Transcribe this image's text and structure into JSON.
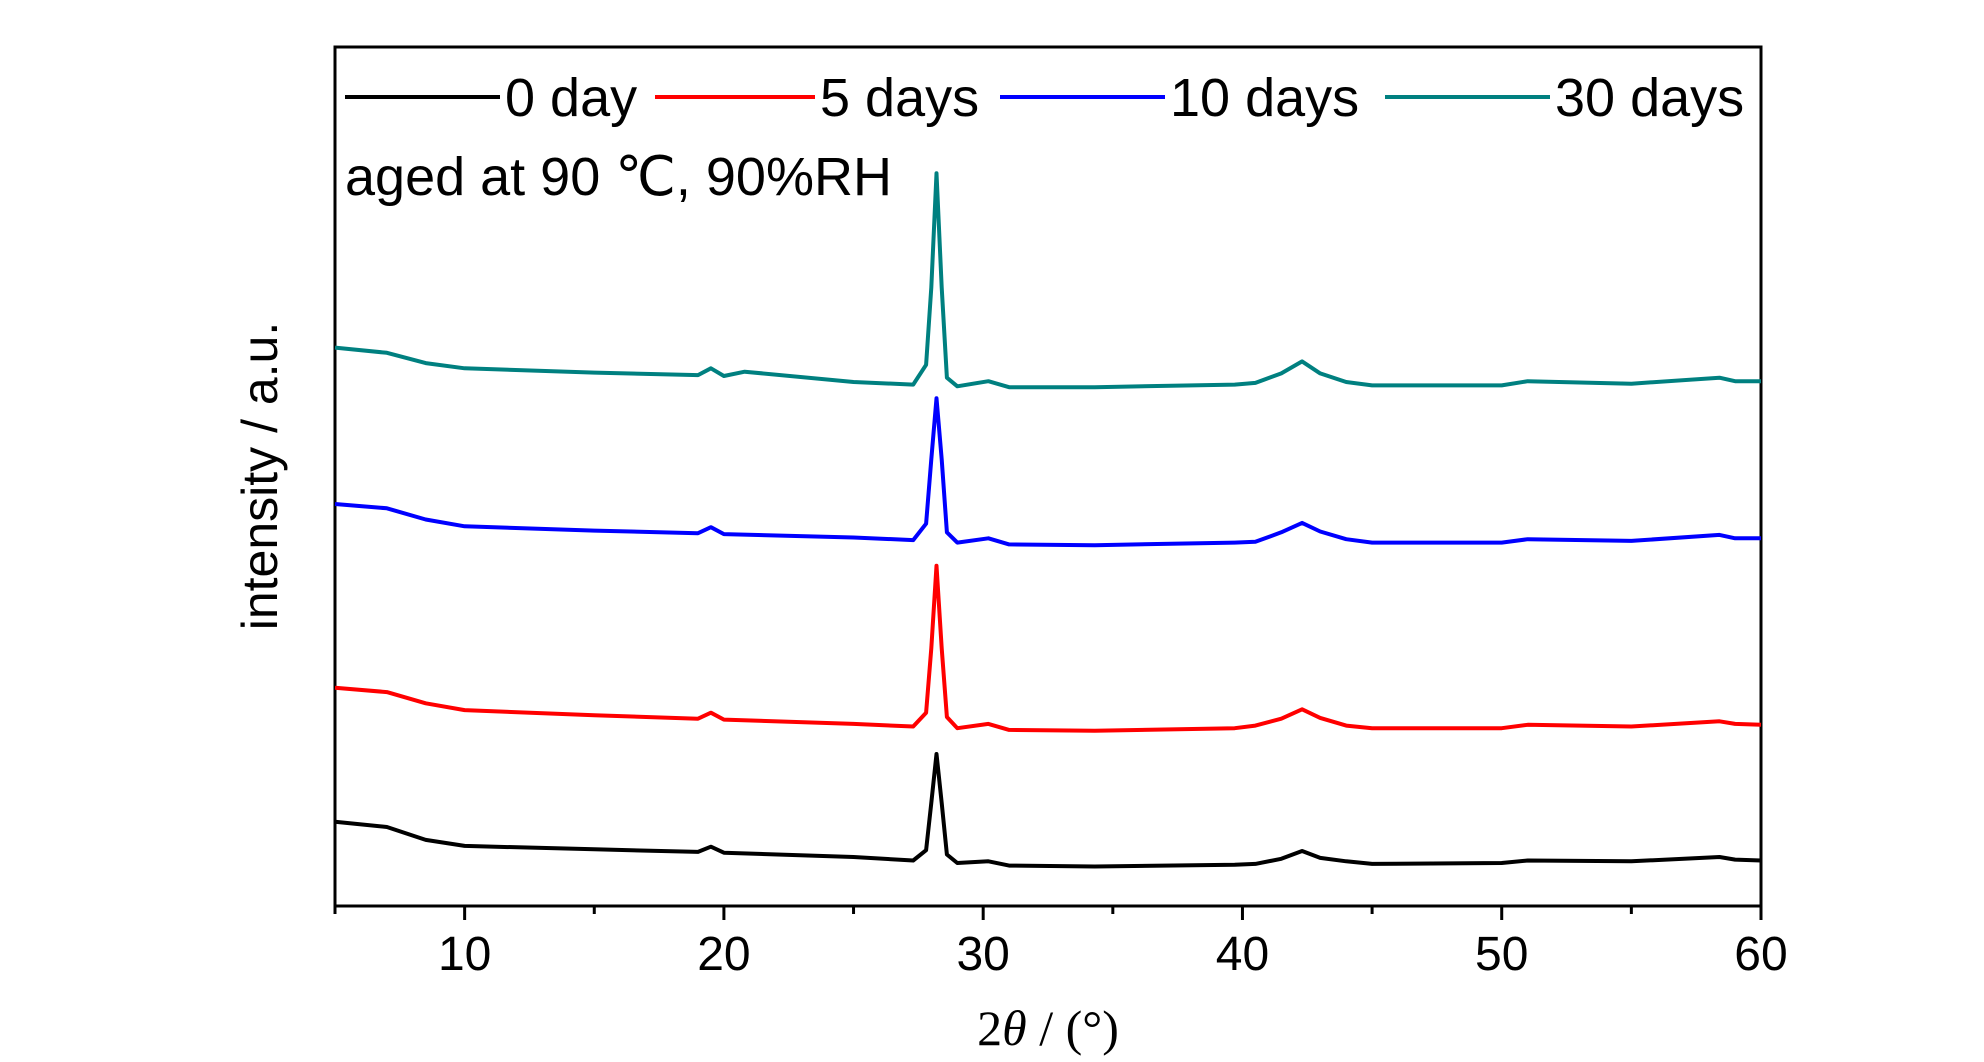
{
  "chart_data": {
    "type": "line",
    "xlabel_prefix": "2",
    "xlabel_theta": "θ",
    "xlabel_suffix": " / (°)",
    "ylabel": "intensity / a.u.",
    "annotation": "aged at 90 ℃, 90%RH",
    "xlim": [
      5,
      60
    ],
    "ylim": [
      0,
      100
    ],
    "x_ticks": [
      10,
      20,
      30,
      40,
      50,
      60
    ],
    "minor_x_ticks": [
      5,
      15,
      25,
      35,
      45,
      55
    ],
    "y_ticks_shown": false,
    "grid": false,
    "legend_position": "top",
    "series": [
      {
        "name": "0 day",
        "color": "#000000",
        "points": [
          [
            5,
            9.8
          ],
          [
            7,
            9.2
          ],
          [
            8.5,
            7.7
          ],
          [
            10,
            7.0
          ],
          [
            15,
            6.6
          ],
          [
            19,
            6.3
          ],
          [
            19.5,
            6.9
          ],
          [
            20,
            6.2
          ],
          [
            25,
            5.7
          ],
          [
            27.3,
            5.3
          ],
          [
            27.8,
            6.5
          ],
          [
            28.0,
            12.0
          ],
          [
            28.2,
            17.7
          ],
          [
            28.4,
            12.0
          ],
          [
            28.6,
            6.0
          ],
          [
            29,
            5.0
          ],
          [
            30.2,
            5.2
          ],
          [
            31,
            4.7
          ],
          [
            34.3,
            4.6
          ],
          [
            39.7,
            4.8
          ],
          [
            40.5,
            4.9
          ],
          [
            41.5,
            5.5
          ],
          [
            42.3,
            6.4
          ],
          [
            43,
            5.6
          ],
          [
            44,
            5.2
          ],
          [
            45,
            4.9
          ],
          [
            50,
            5.0
          ],
          [
            51,
            5.3
          ],
          [
            55,
            5.2
          ],
          [
            58.4,
            5.7
          ],
          [
            59,
            5.4
          ],
          [
            60,
            5.3
          ]
        ]
      },
      {
        "name": "5 days",
        "color": "#ff0000",
        "points": [
          [
            5,
            25.4
          ],
          [
            7,
            24.9
          ],
          [
            8.5,
            23.6
          ],
          [
            10,
            22.8
          ],
          [
            15,
            22.2
          ],
          [
            19,
            21.8
          ],
          [
            19.5,
            22.5
          ],
          [
            20,
            21.7
          ],
          [
            25,
            21.2
          ],
          [
            27.3,
            20.9
          ],
          [
            27.8,
            22.5
          ],
          [
            28.0,
            30.0
          ],
          [
            28.2,
            39.6
          ],
          [
            28.4,
            30.0
          ],
          [
            28.6,
            22.0
          ],
          [
            29,
            20.7
          ],
          [
            30.2,
            21.2
          ],
          [
            31,
            20.5
          ],
          [
            34.3,
            20.4
          ],
          [
            39.7,
            20.7
          ],
          [
            40.5,
            21.0
          ],
          [
            41.5,
            21.8
          ],
          [
            42.3,
            22.9
          ],
          [
            43,
            21.9
          ],
          [
            44,
            21.0
          ],
          [
            45,
            20.7
          ],
          [
            50,
            20.7
          ],
          [
            51,
            21.1
          ],
          [
            55,
            20.9
          ],
          [
            58.4,
            21.5
          ],
          [
            59,
            21.2
          ],
          [
            60,
            21.1
          ]
        ]
      },
      {
        "name": "10 days",
        "color": "#0000ff",
        "points": [
          [
            5,
            46.8
          ],
          [
            7,
            46.3
          ],
          [
            8.5,
            45.0
          ],
          [
            10,
            44.2
          ],
          [
            15,
            43.7
          ],
          [
            19,
            43.4
          ],
          [
            19.5,
            44.1
          ],
          [
            20,
            43.3
          ],
          [
            25,
            42.9
          ],
          [
            27.3,
            42.6
          ],
          [
            27.8,
            44.5
          ],
          [
            28.0,
            52.0
          ],
          [
            28.2,
            59.1
          ],
          [
            28.4,
            52.0
          ],
          [
            28.6,
            43.5
          ],
          [
            29,
            42.3
          ],
          [
            30.2,
            42.8
          ],
          [
            31,
            42.1
          ],
          [
            34.3,
            42.0
          ],
          [
            39.7,
            42.3
          ],
          [
            40.5,
            42.4
          ],
          [
            41.5,
            43.5
          ],
          [
            42.3,
            44.6
          ],
          [
            43,
            43.6
          ],
          [
            44,
            42.7
          ],
          [
            45,
            42.3
          ],
          [
            50,
            42.3
          ],
          [
            51,
            42.7
          ],
          [
            55,
            42.5
          ],
          [
            58.4,
            43.2
          ],
          [
            59,
            42.8
          ],
          [
            60,
            42.8
          ]
        ]
      },
      {
        "name": "30 days",
        "color": "#008080",
        "points": [
          [
            5,
            65.0
          ],
          [
            7,
            64.4
          ],
          [
            8.5,
            63.2
          ],
          [
            10,
            62.6
          ],
          [
            15,
            62.1
          ],
          [
            19,
            61.8
          ],
          [
            19.5,
            62.6
          ],
          [
            20,
            61.7
          ],
          [
            20.8,
            62.2
          ],
          [
            25,
            61.0
          ],
          [
            27.3,
            60.7
          ],
          [
            27.8,
            63.0
          ],
          [
            28.0,
            72.0
          ],
          [
            28.2,
            85.3
          ],
          [
            28.4,
            72.0
          ],
          [
            28.6,
            61.5
          ],
          [
            29,
            60.5
          ],
          [
            30.2,
            61.1
          ],
          [
            31,
            60.4
          ],
          [
            34.3,
            60.4
          ],
          [
            39.7,
            60.7
          ],
          [
            40.5,
            60.9
          ],
          [
            41.5,
            62.0
          ],
          [
            42.3,
            63.4
          ],
          [
            43,
            62.0
          ],
          [
            44,
            61.0
          ],
          [
            45,
            60.6
          ],
          [
            50,
            60.6
          ],
          [
            51,
            61.1
          ],
          [
            55,
            60.8
          ],
          [
            58.4,
            61.5
          ],
          [
            59,
            61.1
          ],
          [
            60,
            61.1
          ]
        ]
      }
    ]
  }
}
